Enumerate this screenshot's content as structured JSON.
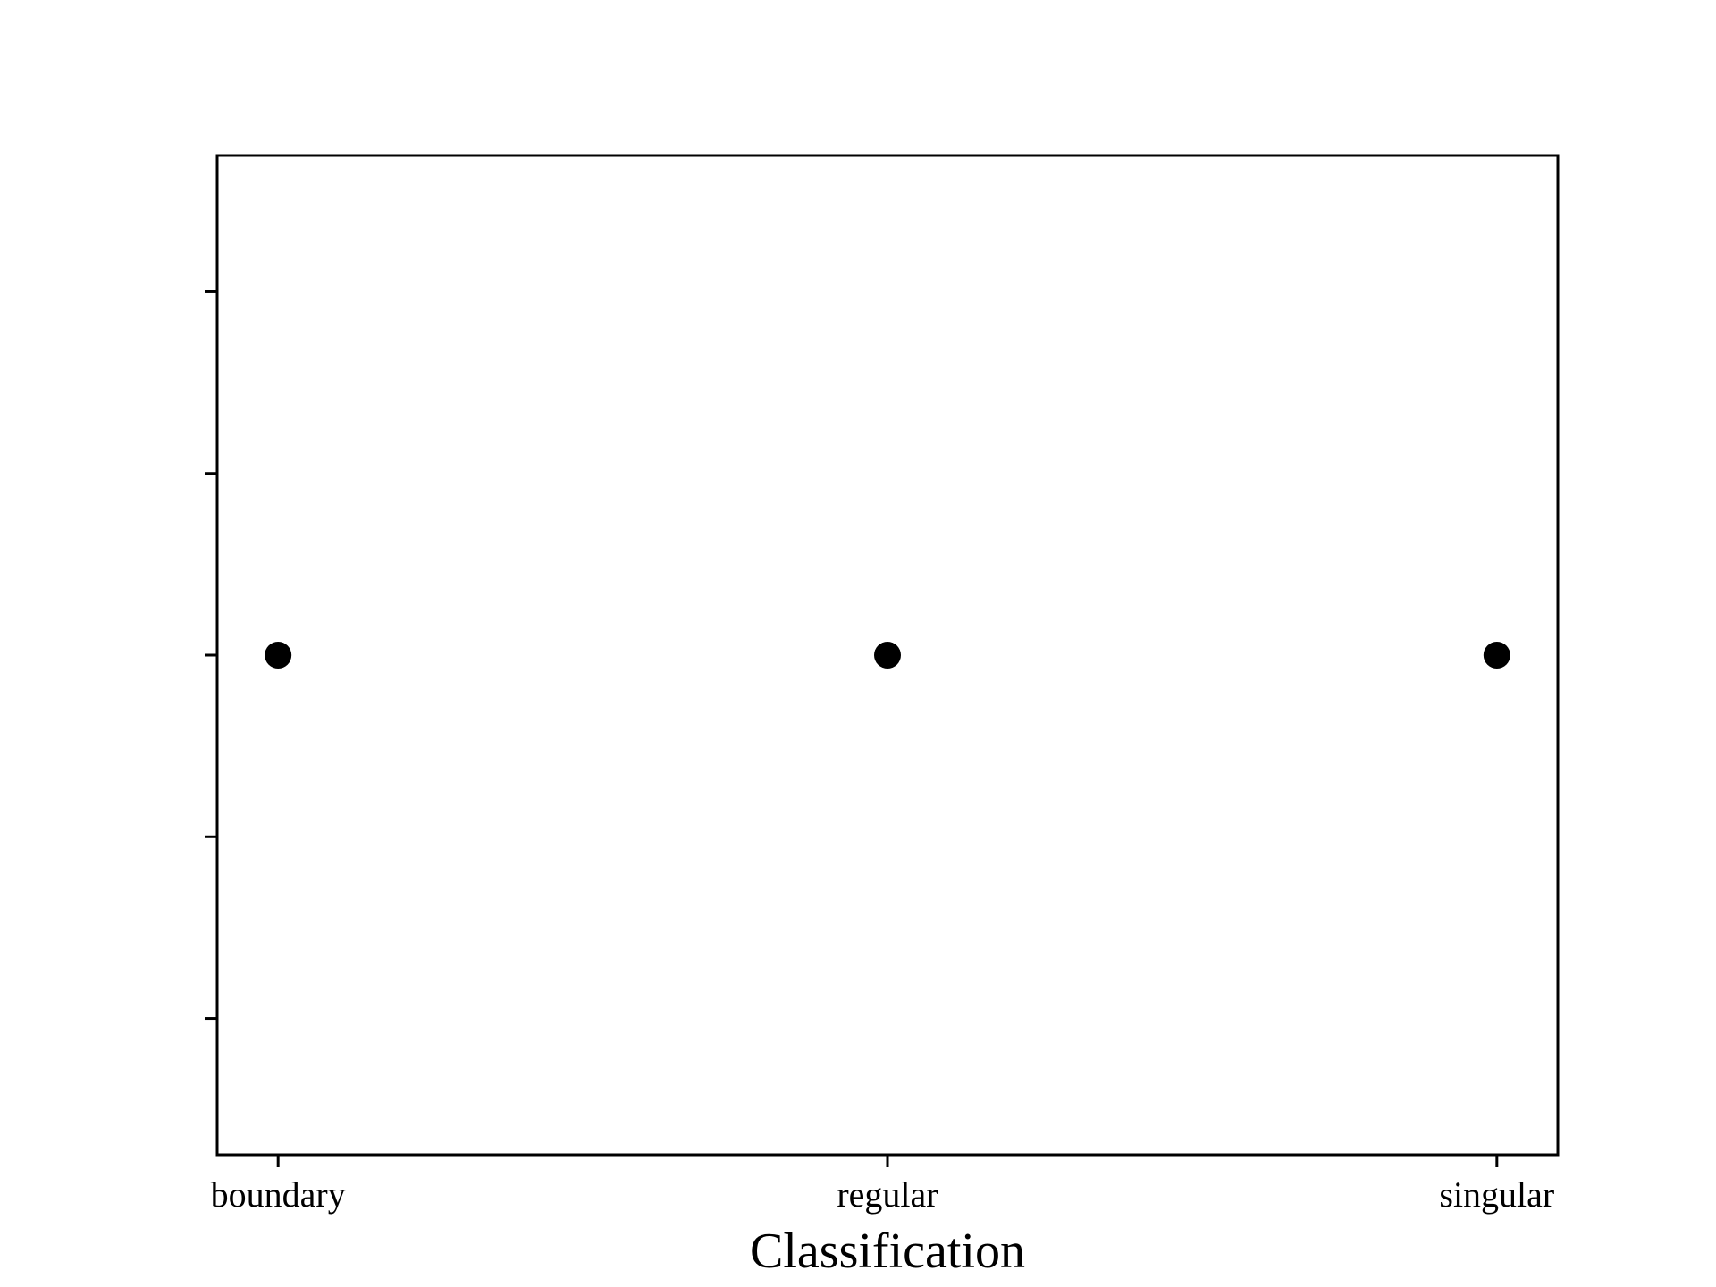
{
  "chart_data": {
    "type": "scatter",
    "title": "",
    "xlabel": "Classification",
    "ylabel": "",
    "categories": [
      "boundary",
      "regular",
      "singular"
    ],
    "series": [
      {
        "x": [
          "boundary",
          "regular",
          "singular"
        ],
        "y": [
          0,
          0,
          0
        ]
      }
    ],
    "ylim": [
      -0.055,
      0.055
    ],
    "yticks": [
      -0.04,
      -0.02,
      0,
      0.02,
      0.04
    ],
    "ytick_labels_shown": false,
    "grid": false,
    "legend": "none",
    "marker_color": "#000000"
  }
}
